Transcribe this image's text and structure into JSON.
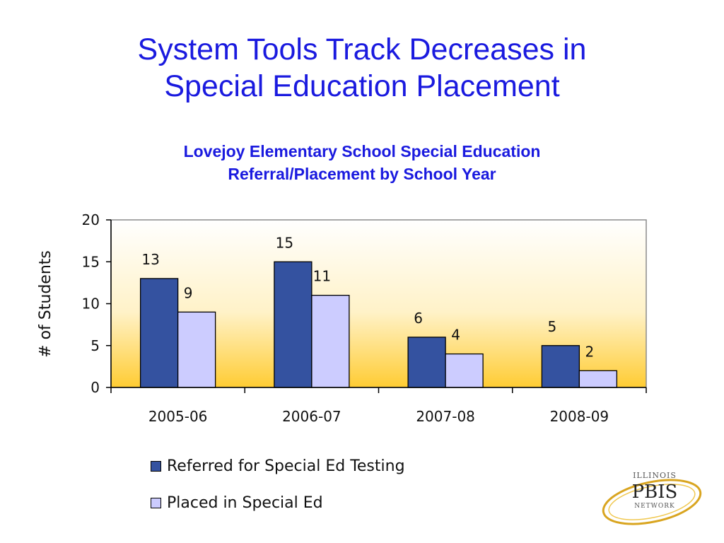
{
  "slide": {
    "title_line1": "System Tools Track Decreases in",
    "title_line2": "Special Education Placement"
  },
  "chart_data": {
    "type": "bar",
    "title_line1": "Lovejoy Elementary School Special Education",
    "title_line2": "Referral/Placement by School Year",
    "categories": [
      "2005-06",
      "2006-07",
      "2007-08",
      "2008-09"
    ],
    "series": [
      {
        "name": "Referred for Special Ed Testing",
        "values": [
          13,
          15,
          6,
          5
        ],
        "color": "#3452a0"
      },
      {
        "name": "Placed in Special Ed",
        "values": [
          9,
          11,
          4,
          2
        ],
        "color": "#ccccff"
      }
    ],
    "ylabel": "# of Students",
    "xlabel": "",
    "ylim": [
      0,
      20
    ],
    "yticks": [
      0,
      5,
      10,
      15,
      20
    ],
    "data_labels": true,
    "grid": false,
    "legend_position": "bottom",
    "plot_background": "gradient white to gold",
    "colors": {
      "gradient_top": "#ffffff",
      "gradient_bottom": "#ffcc33"
    }
  },
  "logo": {
    "line1": "ILLINOIS",
    "line2": "PBIS",
    "line3": "NETWORK"
  }
}
